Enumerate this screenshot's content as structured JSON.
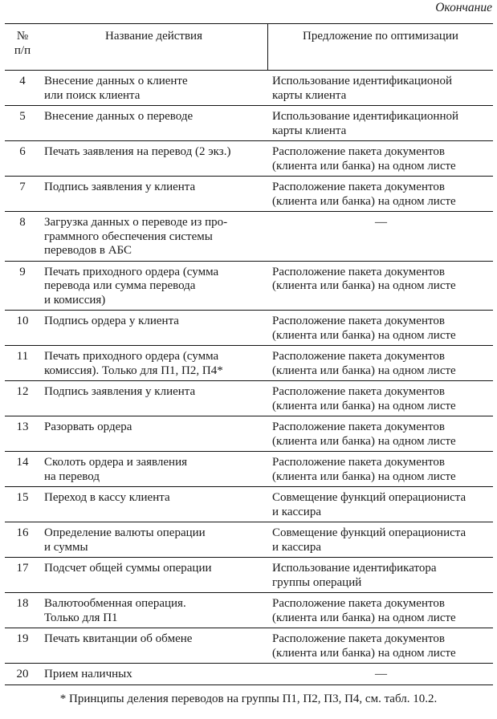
{
  "caption": "Окончание",
  "header": {
    "num": "№\nп/п",
    "action": "Название действия",
    "proposal": "Предложение по оптимизации"
  },
  "rows": [
    {
      "num": "4",
      "action": "Внесение данных о клиенте\nили поиск клиента",
      "proposal": "Использование идентификационой\nкарты клиента"
    },
    {
      "num": "5",
      "action": "Внесение данных о переводе",
      "proposal": "Использование идентификационной\nкарты клиента"
    },
    {
      "num": "6",
      "action": "Печать заявления на перевод (2 экз.)",
      "proposal": "Расположение пакета документов\n(клиента или банка) на одном листе"
    },
    {
      "num": "7",
      "action": "Подпись заявления у клиента",
      "proposal": "Расположение пакета документов\n(клиента или банка) на одном листе"
    },
    {
      "num": "8",
      "action": "Загрузка данных о переводе из про-\nграммного обеспечения системы\nпереводов в АБС",
      "proposal": "—"
    },
    {
      "num": "9",
      "action": "Печать приходного ордера (сумма\nперевода или сумма перевода\nи комиссия)",
      "proposal": "Расположение пакета документов\n(клиента или банка) на одном листе"
    },
    {
      "num": "10",
      "action": "Подпись ордера у клиента",
      "proposal": "Расположение пакета документов\n(клиента или банка) на одном листе"
    },
    {
      "num": "11",
      "action": "Печать приходного ордера (сумма\nкомиссия). Только для П1, П2, П4*",
      "proposal": "Расположение пакета документов\n(клиента или банка) на одном листе"
    },
    {
      "num": "12",
      "action": "Подпись заявления у клиента",
      "proposal": "Расположение пакета документов\n(клиента или банка) на одном листе"
    },
    {
      "num": "13",
      "action": "Разорвать ордера",
      "proposal": "Расположение пакета документов\n(клиента или банка) на одном листе"
    },
    {
      "num": "14",
      "action": "Сколоть ордера и заявления\nна перевод",
      "proposal": "Расположение пакета документов\n(клиента или банка) на одном листе"
    },
    {
      "num": "15",
      "action": "Переход в кассу клиента",
      "proposal": "Совмещение функций операциониста\nи кассира"
    },
    {
      "num": "16",
      "action": "Определение валюты операции\nи суммы",
      "proposal": "Совмещение функций операциониста\nи кассира"
    },
    {
      "num": "17",
      "action": "Подсчет общей суммы операции",
      "proposal": "Использование идентификатора\nгруппы операций"
    },
    {
      "num": "18",
      "action": "Валютообменная операция.\nТолько для П1",
      "proposal": "Расположение пакета документов\n(клиента или банка) на одном листе"
    },
    {
      "num": "19",
      "action": "Печать квитанции об обмене",
      "proposal": "Расположение пакета документов\n(клиента или банка) на одном листе"
    },
    {
      "num": "20",
      "action": "Прием наличных",
      "proposal": "—"
    }
  ],
  "footnote": "* Принципы деления переводов на группы П1, П2, П3, П4, см. табл. 10.2."
}
